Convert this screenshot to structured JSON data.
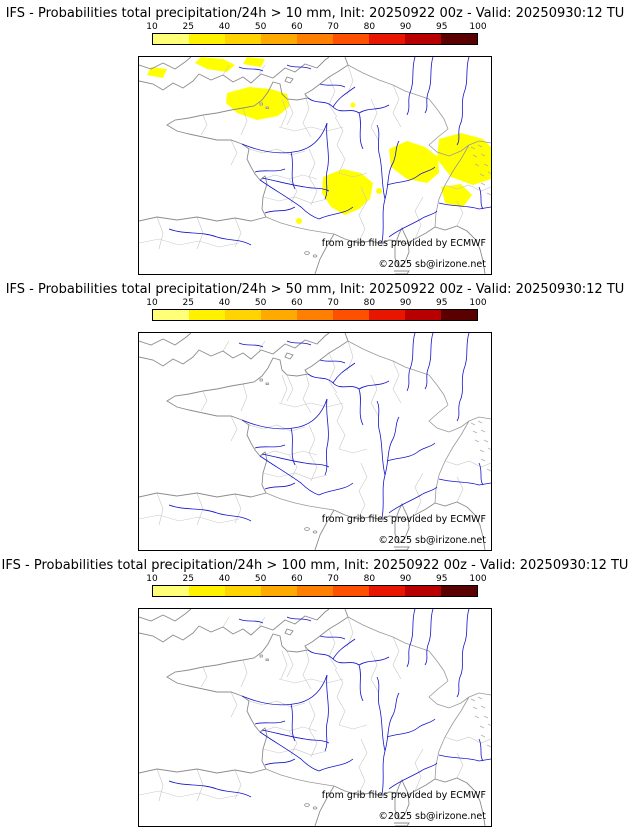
{
  "page": {
    "background": "#ffffff"
  },
  "colorbar": {
    "ticks": [
      "10",
      "25",
      "40",
      "50",
      "60",
      "70",
      "80",
      "90",
      "95",
      "100"
    ],
    "segment_colors": [
      "#ffff78",
      "#fff200",
      "#ffd400",
      "#ffaa00",
      "#ff7f00",
      "#ff4f00",
      "#e81500",
      "#b80000",
      "#5a0000"
    ],
    "border_color": "#000000"
  },
  "map": {
    "attribution": "from grib files provided by ECMWF",
    "copyright": "©2025 sb@irizone.net",
    "river_color": "#1414cc",
    "coast_color": "#8c8c8c",
    "boundary_color": "#c8c8c8",
    "shading_color": "#ffff00"
  },
  "panels": [
    {
      "title": "IFS - Probabilities total precipitation/24h > 10 mm, Init: 20250922 00z - Valid: 20250930:12 TU",
      "threshold_mm": 10,
      "shading_visible": true,
      "shaded_regions": [
        "south-england-wales",
        "english-channel-brittany",
        "massif-central-languedoc",
        "western-alps",
        "northern-italy",
        "liguria",
        "pyrenees-spot"
      ]
    },
    {
      "title": "IFS - Probabilities total precipitation/24h > 50 mm, Init: 20250922 00z - Valid: 20250930:12 TU",
      "threshold_mm": 50,
      "shading_visible": false,
      "shaded_regions": []
    },
    {
      "title": "IFS - Probabilities total precipitation/24h > 100 mm, Init: 20250922 00z - Valid: 20250930:12 TU",
      "threshold_mm": 100,
      "shading_visible": false,
      "shaded_regions": []
    }
  ]
}
